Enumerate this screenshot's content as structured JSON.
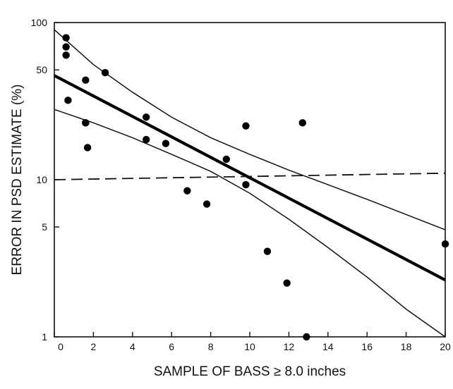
{
  "chart_data": {
    "type": "scatter",
    "title": "",
    "xlabel": "SAMPLE OF BASS ≥ 8.0 inches",
    "ylabel": "ERROR IN PSD ESTIMATE (%)",
    "xlim": [
      0,
      20
    ],
    "ylim": [
      1,
      100
    ],
    "y_scale": "log",
    "x_ticks": [
      0,
      2,
      4,
      6,
      8,
      10,
      12,
      14,
      16,
      18,
      20
    ],
    "x_tick_labels": [
      "0",
      "2",
      "4",
      "6",
      "8",
      "10",
      "12",
      "14",
      "16",
      "18",
      "20"
    ],
    "y_ticks": [
      1,
      5,
      10,
      50,
      100
    ],
    "y_tick_labels": [
      "1",
      "5",
      "10",
      "50",
      "100"
    ],
    "grid": false,
    "series": [
      {
        "kind": "points",
        "x": [
          0.6,
          0.6,
          0.6,
          0.7,
          1.6,
          1.6,
          1.7,
          1.6,
          2.6,
          4.7,
          4.7,
          5.7,
          6.8,
          7.8,
          8.8,
          9.8,
          9.8,
          10.9,
          11.9,
          12.7,
          12.9,
          20.0
        ],
        "y": [
          80,
          70,
          62,
          32,
          43,
          23,
          16,
          23,
          48,
          25,
          18,
          17,
          8.5,
          7,
          13.5,
          9.3,
          22,
          3.5,
          2.2,
          23,
          1.0,
          3.9
        ]
      },
      {
        "kind": "regression",
        "style": "thick-solid",
        "x": [
          0,
          20
        ],
        "y": [
          46,
          2.3
        ]
      },
      {
        "kind": "upper-confidence-band",
        "style": "thin-solid",
        "x": [
          0,
          2,
          4,
          6,
          8,
          10,
          12,
          14,
          16,
          18,
          20
        ],
        "y": [
          90,
          54,
          36,
          25,
          18.5,
          14.5,
          11.5,
          9.3,
          7.5,
          6,
          4.8
        ]
      },
      {
        "kind": "lower-confidence-band",
        "style": "thin-solid",
        "x": [
          0,
          2,
          4,
          6,
          8,
          10,
          12,
          14,
          16,
          18,
          20
        ],
        "y": [
          28,
          23,
          18.5,
          14.5,
          11.3,
          8.2,
          5.6,
          3.7,
          2.4,
          1.5,
          1.0
        ]
      },
      {
        "kind": "reference",
        "style": "dashed",
        "x": [
          0,
          20
        ],
        "y": [
          10,
          11
        ]
      }
    ]
  }
}
